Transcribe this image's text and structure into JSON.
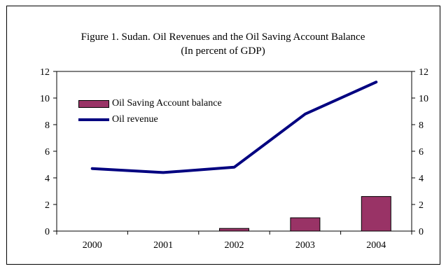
{
  "chart_data": {
    "type": "bar+line",
    "title_lines": [
      "Figure 1. Sudan. Oil Revenues and the Oil Saving Account Balance",
      "(In percent of GDP)"
    ],
    "categories": [
      "2000",
      "2001",
      "2002",
      "2003",
      "2004"
    ],
    "series": [
      {
        "name": "Oil Saving Account balance",
        "type": "bar",
        "values": [
          0,
          0,
          0.2,
          1.0,
          2.6
        ]
      },
      {
        "name": "Oil revenue",
        "type": "line",
        "values": [
          4.7,
          4.4,
          4.8,
          8.8,
          11.2
        ]
      }
    ],
    "ylim": [
      0,
      12
    ],
    "yticks": [
      "0",
      "2",
      "4",
      "6",
      "8",
      "10",
      "12"
    ],
    "y2ticks": [
      "0",
      "2",
      "4",
      "6",
      "8",
      "10",
      "12"
    ],
    "legend_position": "upper-left",
    "grid": false,
    "colors": {
      "bar": "#993366",
      "line": "#000080"
    }
  }
}
